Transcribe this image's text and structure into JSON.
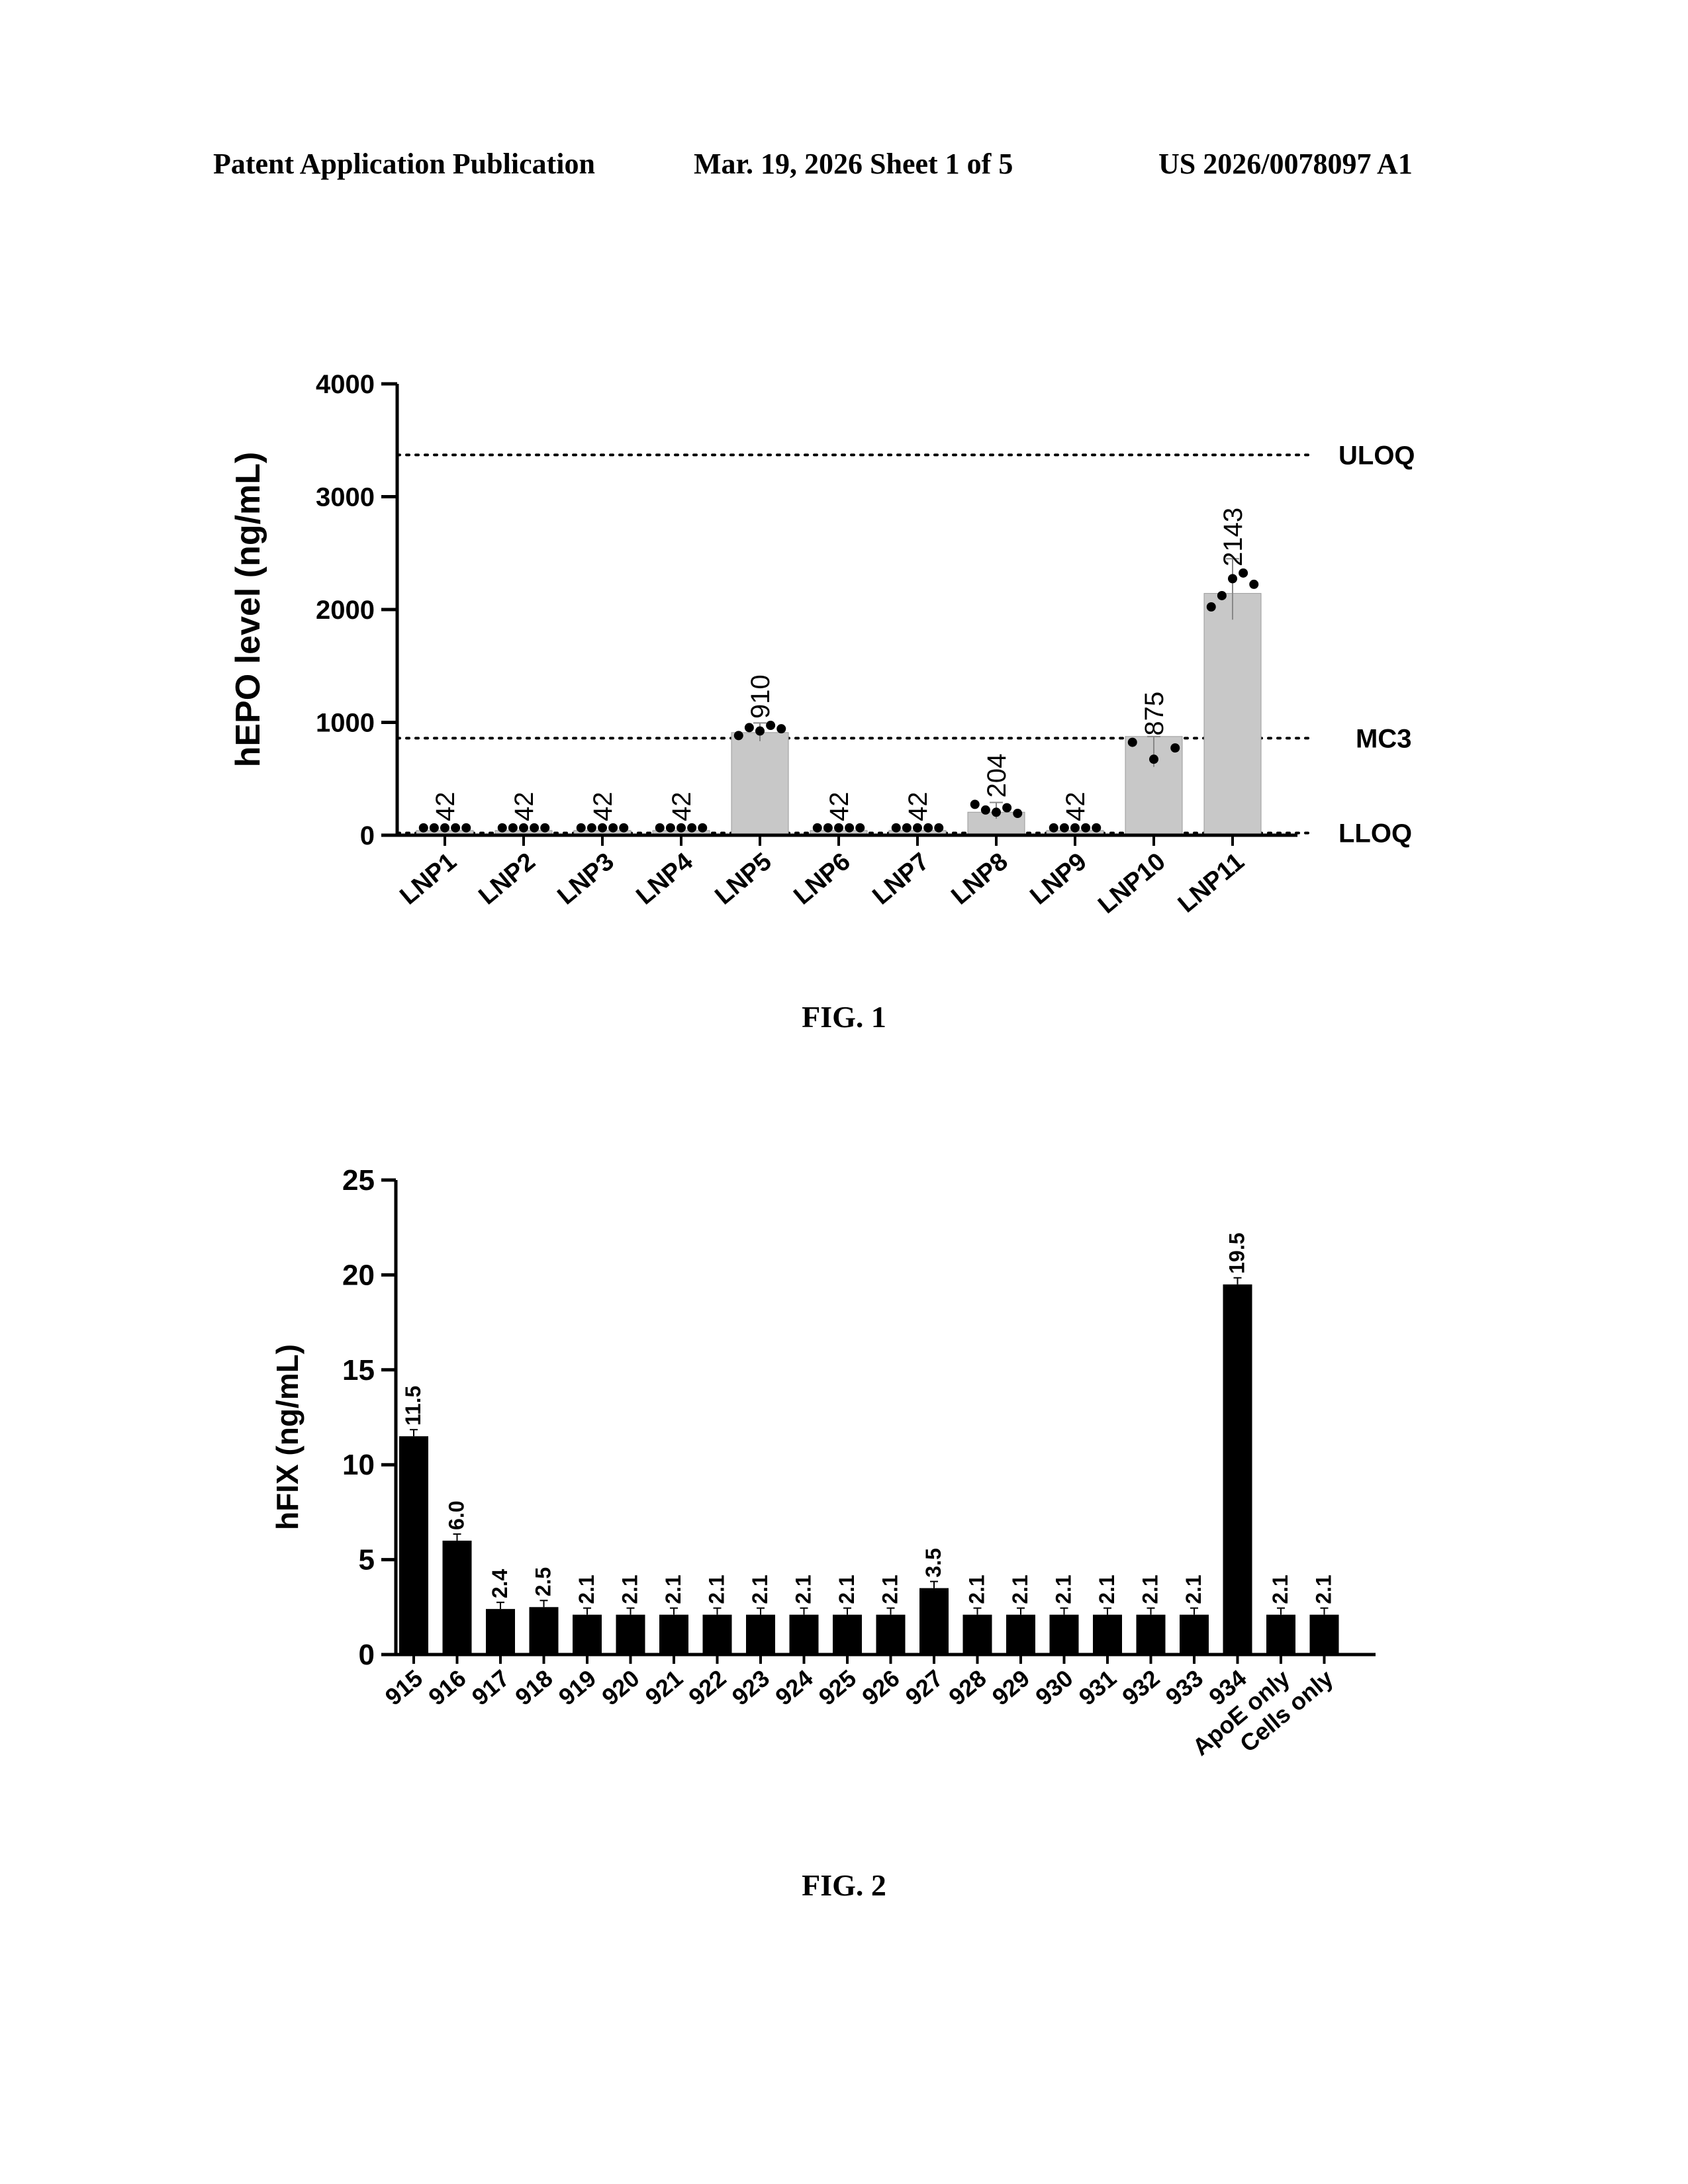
{
  "header": {
    "left": "Patent Application Publication",
    "mid": "Mar. 19, 2026  Sheet 1 of 5",
    "right": "US 2026/0078097 A1"
  },
  "figure1": {
    "caption": "FIG. 1"
  },
  "figure2": {
    "caption": "FIG. 2"
  },
  "colors": {
    "fig1_bar": "#c8c8c8",
    "fig2_bar": "#000000",
    "ink": "#000000"
  },
  "chart_data": [
    {
      "type": "bar",
      "title": "",
      "xlabel": "",
      "ylabel": "hEPO level (ng/mL)",
      "ylim": [
        0,
        4000
      ],
      "yticks": [
        0,
        1000,
        2000,
        3000,
        4000
      ],
      "grid": false,
      "categories": [
        "LNP1",
        "LNP2",
        "LNP3",
        "LNP4",
        "LNP5",
        "LNP6",
        "LNP7",
        "LNP8",
        "LNP9",
        "LNP10",
        "LNP11"
      ],
      "values": [
        42,
        42,
        42,
        42,
        910,
        42,
        42,
        204,
        42,
        875,
        2143
      ],
      "value_labels": [
        "42",
        "42",
        "42",
        "42",
        "910",
        "42",
        "42",
        "204",
        "42",
        "875",
        "2143"
      ],
      "points": [
        [
          42,
          42,
          42,
          42,
          42
        ],
        [
          42,
          42,
          42,
          42,
          42
        ],
        [
          42,
          42,
          42,
          42,
          42
        ],
        [
          42,
          42,
          42,
          42,
          42
        ],
        [
          860,
          930,
          900,
          950,
          920
        ],
        [
          42,
          42,
          42,
          42,
          42
        ],
        [
          42,
          42,
          42,
          42,
          42
        ],
        [
          250,
          200,
          180,
          220,
          170
        ],
        [
          42,
          42,
          42,
          42,
          42
        ],
        [
          800,
          650,
          750
        ],
        [
          2000,
          2100,
          2250,
          2300,
          2200
        ]
      ],
      "reference_lines": [
        {
          "label": "ULOQ",
          "value": 3370
        },
        {
          "label": "MC3",
          "value": 860
        },
        {
          "label": "LLOQ",
          "value": 20
        }
      ]
    },
    {
      "type": "bar",
      "title": "",
      "xlabel": "",
      "ylabel": "hFIX (ng/mL)",
      "ylim": [
        0,
        25
      ],
      "yticks": [
        0,
        5,
        10,
        15,
        20,
        25
      ],
      "grid": false,
      "categories": [
        "915",
        "916",
        "917",
        "918",
        "919",
        "920",
        "921",
        "922",
        "923",
        "924",
        "925",
        "926",
        "927",
        "928",
        "929",
        "930",
        "931",
        "932",
        "933",
        "934",
        "ApoE only",
        "Cells only"
      ],
      "values": [
        11.5,
        6.0,
        2.4,
        2.5,
        2.1,
        2.1,
        2.1,
        2.1,
        2.1,
        2.1,
        2.1,
        2.1,
        3.5,
        2.1,
        2.1,
        2.1,
        2.1,
        2.1,
        2.1,
        19.5,
        2.1,
        2.1
      ],
      "value_labels": [
        "11.5",
        "6.0",
        "2.4",
        "2.5",
        "2.1",
        "2.1",
        "2.1",
        "2.1",
        "2.1",
        "2.1",
        "2.1",
        "2.1",
        "3.5",
        "2.1",
        "2.1",
        "2.1",
        "2.1",
        "2.1",
        "2.1",
        "19.5",
        "2.1",
        "2.1"
      ]
    }
  ]
}
